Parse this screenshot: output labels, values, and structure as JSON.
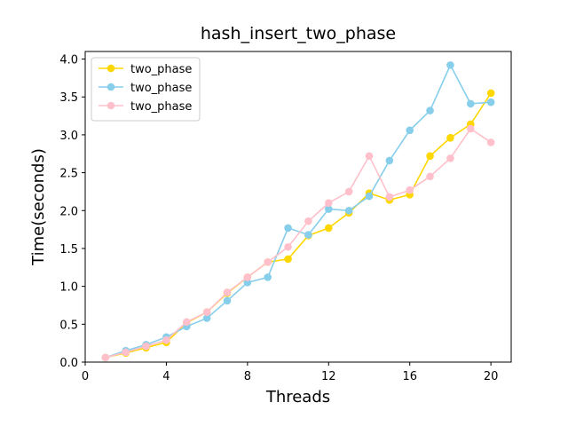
{
  "chart_data": {
    "type": "line",
    "title": "hash_insert_two_phase",
    "xlabel": "Threads",
    "ylabel": "Time(seconds)",
    "xlim": [
      0,
      21
    ],
    "ylim": [
      0,
      4.1
    ],
    "xticks": [
      0,
      4,
      8,
      12,
      16,
      20
    ],
    "yticks": [
      0.0,
      0.5,
      1.0,
      1.5,
      2.0,
      2.5,
      3.0,
      3.5,
      4.0
    ],
    "ytick_labels": [
      "0.0",
      "0.5",
      "1.0",
      "1.5",
      "2.0",
      "2.5",
      "3.0",
      "3.5",
      "4.0"
    ],
    "grid": false,
    "legend_position": "top-left",
    "x": [
      1,
      2,
      3,
      4,
      5,
      6,
      7,
      8,
      9,
      10,
      11,
      12,
      13,
      14,
      15,
      16,
      17,
      18,
      19,
      20
    ],
    "series": [
      {
        "name": "two_phase",
        "color": "#FFD700",
        "values": [
          0.06,
          0.12,
          0.19,
          0.26,
          0.52,
          0.66,
          0.91,
          1.12,
          1.32,
          1.36,
          1.67,
          1.77,
          1.97,
          2.23,
          2.14,
          2.21,
          2.72,
          2.96,
          3.14,
          3.55
        ]
      },
      {
        "name": "two_phase",
        "color": "#87CEEB",
        "values": [
          0.06,
          0.15,
          0.23,
          0.33,
          0.47,
          0.58,
          0.81,
          1.05,
          1.12,
          1.77,
          1.68,
          2.02,
          2.0,
          2.19,
          2.66,
          3.06,
          3.32,
          3.92,
          3.41,
          3.43
        ]
      },
      {
        "name": "two_phase",
        "color": "#FFC0CB",
        "values": [
          0.06,
          0.13,
          0.21,
          0.29,
          0.53,
          0.66,
          0.92,
          1.12,
          1.32,
          1.52,
          1.86,
          2.1,
          2.25,
          2.72,
          2.18,
          2.27,
          2.45,
          2.69,
          3.08,
          2.9
        ]
      }
    ]
  }
}
